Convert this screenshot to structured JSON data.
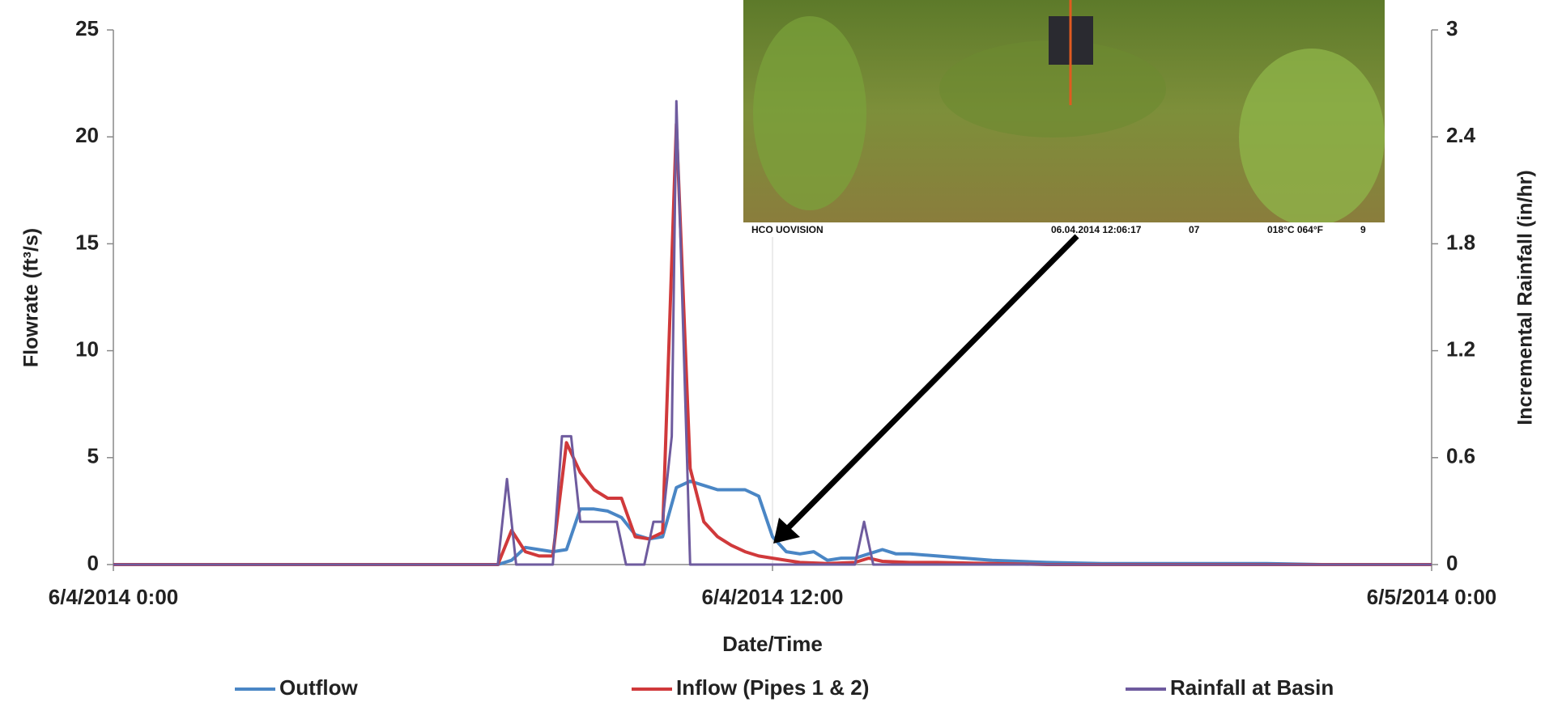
{
  "chart_data": {
    "type": "line",
    "x_label": "Date/Time",
    "y_label": "Flowrate (ft³/s)",
    "y2_label": "Incremental Rainfall (in/hr)",
    "xlim": [
      "6/4/2014 0:00",
      "6/5/2014 0:00"
    ],
    "xticks": [
      "6/4/2014 0:00",
      "6/4/2014 12:00",
      "6/5/2014 0:00"
    ],
    "ylim": [
      0,
      25
    ],
    "yticks": [
      0,
      5,
      10,
      15,
      20,
      25
    ],
    "y2lim": [
      0,
      3
    ],
    "y2ticks": [
      0,
      0.6,
      1.2,
      1.8,
      2.4,
      3
    ],
    "grid": "x",
    "photo_labels": [
      "HCO  UOVISION",
      "06.04.2014  12:06:17",
      "07",
      "018°C  064°F",
      "9"
    ],
    "series": [
      {
        "name": "Outflow",
        "color": "#4a86c5",
        "x": [
          "6/4/2014 0:00",
          "6/4/2014 7:00",
          "6/4/2014 7:15",
          "6/4/2014 7:30",
          "6/4/2014 7:45",
          "6/4/2014 8:00",
          "6/4/2014 8:15",
          "6/4/2014 8:30",
          "6/4/2014 8:45",
          "6/4/2014 9:00",
          "6/4/2014 9:15",
          "6/4/2014 9:30",
          "6/4/2014 9:45",
          "6/4/2014 10:00",
          "6/4/2014 10:15",
          "6/4/2014 10:30",
          "6/4/2014 10:45",
          "6/4/2014 11:00",
          "6/4/2014 11:15",
          "6/4/2014 11:30",
          "6/4/2014 11:45",
          "6/4/2014 12:00",
          "6/4/2014 12:15",
          "6/4/2014 12:30",
          "6/4/2014 12:45",
          "6/4/2014 13:00",
          "6/4/2014 13:15",
          "6/4/2014 13:30",
          "6/4/2014 13:45",
          "6/4/2014 14:00",
          "6/4/2014 14:15",
          "6/4/2014 14:30",
          "6/4/2014 15:00",
          "6/4/2014 15:30",
          "6/4/2014 16:00",
          "6/4/2014 17:00",
          "6/4/2014 18:00",
          "6/4/2014 21:00",
          "6/4/2014 22:00",
          "6/5/2014 0:00"
        ],
        "values": [
          0,
          0,
          0.2,
          0.8,
          0.7,
          0.6,
          0.7,
          2.6,
          2.6,
          2.5,
          2.2,
          1.4,
          1.2,
          1.3,
          3.6,
          3.9,
          3.7,
          3.5,
          3.5,
          3.5,
          3.2,
          1.3,
          0.6,
          0.5,
          0.6,
          0.2,
          0.3,
          0.3,
          0.5,
          0.7,
          0.5,
          0.5,
          0.4,
          0.3,
          0.2,
          0.1,
          0.05,
          0.05,
          0,
          0
        ]
      },
      {
        "name": "Inflow (Pipes 1 & 2)",
        "color": "#d0393b",
        "x": [
          "6/4/2014 0:00",
          "6/4/2014 7:00",
          "6/4/2014 7:15",
          "6/4/2014 7:30",
          "6/4/2014 7:45",
          "6/4/2014 8:00",
          "6/4/2014 8:15",
          "6/4/2014 8:30",
          "6/4/2014 8:45",
          "6/4/2014 9:00",
          "6/4/2014 9:15",
          "6/4/2014 9:30",
          "6/4/2014 9:45",
          "6/4/2014 10:00",
          "6/4/2014 10:15",
          "6/4/2014 10:30",
          "6/4/2014 10:45",
          "6/4/2014 11:00",
          "6/4/2014 11:15",
          "6/4/2014 11:30",
          "6/4/2014 11:45",
          "6/4/2014 12:00",
          "6/4/2014 12:30",
          "6/4/2014 13:00",
          "6/4/2014 13:30",
          "6/4/2014 13:45",
          "6/4/2014 14:00",
          "6/4/2014 14:30",
          "6/4/2014 15:00",
          "6/4/2014 16:00",
          "6/4/2014 17:00",
          "6/5/2014 0:00"
        ],
        "values": [
          0,
          0,
          1.6,
          0.6,
          0.4,
          0.4,
          5.7,
          4.3,
          3.5,
          3.1,
          3.1,
          1.3,
          1.2,
          1.5,
          20.6,
          4.5,
          2,
          1.3,
          0.9,
          0.6,
          0.4,
          0.3,
          0.1,
          0.05,
          0.1,
          0.3,
          0.15,
          0.1,
          0.1,
          0.05,
          0,
          0
        ]
      },
      {
        "name": "Rainfall at Basin",
        "color": "#6e5b9e",
        "axis": "y2",
        "x": [
          "6/4/2014 0:00",
          "6/4/2014 7:00",
          "6/4/2014 7:10",
          "6/4/2014 7:20",
          "6/4/2014 8:00",
          "6/4/2014 8:10",
          "6/4/2014 8:20",
          "6/4/2014 8:30",
          "6/4/2014 9:10",
          "6/4/2014 9:20",
          "6/4/2014 9:40",
          "6/4/2014 9:50",
          "6/4/2014 10:00",
          "6/4/2014 10:10",
          "6/4/2014 10:15",
          "6/4/2014 10:30",
          "6/4/2014 13:30",
          "6/4/2014 13:40",
          "6/4/2014 13:50",
          "6/5/2014 0:00"
        ],
        "values": [
          0,
          0,
          0.48,
          0,
          0,
          0.72,
          0.72,
          0.24,
          0.24,
          0,
          0,
          0.24,
          0.24,
          0.72,
          2.6,
          0,
          0,
          0.24,
          0,
          0
        ]
      }
    ]
  }
}
